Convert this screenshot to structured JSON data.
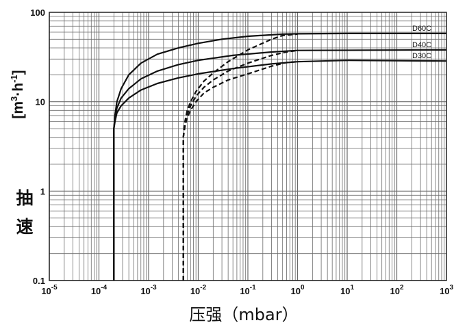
{
  "chart_data": {
    "type": "line",
    "x_scale": "log",
    "y_scale": "log",
    "xlim": [
      1e-05,
      1000
    ],
    "ylim": [
      0.1,
      100
    ],
    "grid": true,
    "x_ticks": [
      {
        "base": "10",
        "exp": "-5"
      },
      {
        "base": "10",
        "exp": "-4"
      },
      {
        "base": "10",
        "exp": "-3"
      },
      {
        "base": "10",
        "exp": "-2"
      },
      {
        "base": "10",
        "exp": "-1"
      },
      {
        "base": "10",
        "exp": "0"
      },
      {
        "base": "10",
        "exp": "1"
      },
      {
        "base": "10",
        "exp": "2"
      },
      {
        "base": "10",
        "exp": "3"
      }
    ],
    "y_ticks": [
      "0.1",
      "1",
      "10",
      "100"
    ],
    "xlabel_text": "压强（mbar）",
    "ylabel_cjk": [
      "抽",
      "速"
    ],
    "ylabel_unit_parts": [
      "[m",
      "3",
      "·h",
      "-1",
      "]"
    ],
    "series": [
      {
        "name": "D60C",
        "style": "solid",
        "points": [
          [
            0.0002,
            0.1
          ],
          [
            0.0002,
            2
          ],
          [
            0.0002,
            5
          ],
          [
            0.00021,
            7
          ],
          [
            0.00023,
            10
          ],
          [
            0.00028,
            14
          ],
          [
            0.0004,
            20
          ],
          [
            0.0007,
            27
          ],
          [
            0.0015,
            34
          ],
          [
            0.004,
            40
          ],
          [
            0.01,
            45
          ],
          [
            0.03,
            50
          ],
          [
            0.1,
            54
          ],
          [
            0.5,
            57
          ],
          [
            1,
            57.5
          ],
          [
            10,
            58
          ],
          [
            1000,
            58
          ]
        ]
      },
      {
        "name": "D40C",
        "style": "solid",
        "points": [
          [
            0.0002,
            0.1
          ],
          [
            0.0002,
            2
          ],
          [
            0.0002,
            5
          ],
          [
            0.00021,
            6.5
          ],
          [
            0.00023,
            8.5
          ],
          [
            0.00028,
            11
          ],
          [
            0.0004,
            14
          ],
          [
            0.0007,
            18
          ],
          [
            0.0015,
            22
          ],
          [
            0.004,
            26
          ],
          [
            0.01,
            29
          ],
          [
            0.05,
            33
          ],
          [
            0.3,
            36
          ],
          [
            1,
            37.5
          ],
          [
            1000,
            38
          ]
        ]
      },
      {
        "name": "D30C",
        "style": "solid",
        "points": [
          [
            0.0002,
            0.1
          ],
          [
            0.0002,
            2
          ],
          [
            0.0002,
            5
          ],
          [
            0.00021,
            6
          ],
          [
            0.00023,
            7.5
          ],
          [
            0.00028,
            9
          ],
          [
            0.0004,
            11
          ],
          [
            0.0007,
            13.5
          ],
          [
            0.0015,
            16
          ],
          [
            0.004,
            18.5
          ],
          [
            0.01,
            20.5
          ],
          [
            0.05,
            23.5
          ],
          [
            0.3,
            26.5
          ],
          [
            1,
            28
          ],
          [
            10,
            29
          ],
          [
            1000,
            28.5
          ]
        ]
      },
      {
        "name": "",
        "style": "dashed",
        "points": [
          [
            0.005,
            0.1
          ],
          [
            0.005,
            1
          ],
          [
            0.005,
            4
          ],
          [
            0.0054,
            6
          ],
          [
            0.006,
            8
          ],
          [
            0.007,
            10
          ],
          [
            0.009,
            13
          ],
          [
            0.013,
            17
          ],
          [
            0.02,
            21
          ],
          [
            0.04,
            28
          ],
          [
            0.1,
            38
          ],
          [
            0.3,
            50
          ],
          [
            0.5,
            55
          ],
          [
            1,
            57
          ]
        ]
      },
      {
        "name": "",
        "style": "dashed",
        "points": [
          [
            0.005,
            0.1
          ],
          [
            0.005,
            1
          ],
          [
            0.005,
            4
          ],
          [
            0.0054,
            5.6
          ],
          [
            0.006,
            7.2
          ],
          [
            0.007,
            9
          ],
          [
            0.009,
            11.5
          ],
          [
            0.013,
            14.5
          ],
          [
            0.02,
            17.5
          ],
          [
            0.04,
            22
          ],
          [
            0.1,
            27
          ],
          [
            0.3,
            33
          ],
          [
            0.6,
            36
          ],
          [
            1,
            37.5
          ]
        ]
      },
      {
        "name": "",
        "style": "dashed",
        "points": [
          [
            0.005,
            0.1
          ],
          [
            0.005,
            1
          ],
          [
            0.005,
            4
          ],
          [
            0.0054,
            5.3
          ],
          [
            0.006,
            6.6
          ],
          [
            0.007,
            8
          ],
          [
            0.009,
            10
          ],
          [
            0.013,
            12.5
          ],
          [
            0.02,
            14.5
          ],
          [
            0.04,
            17.5
          ],
          [
            0.1,
            20.5
          ],
          [
            0.3,
            25
          ],
          [
            0.6,
            27.5
          ],
          [
            1,
            28
          ]
        ]
      }
    ]
  }
}
